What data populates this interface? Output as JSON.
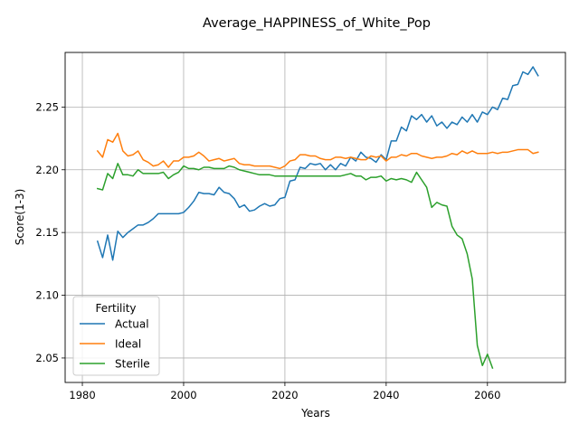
{
  "chart_data": {
    "type": "line",
    "title": "Average_HAPPINESS_of_White_Pop",
    "xlabel": "Years",
    "ylabel": "Score(1-3)",
    "xlim": [
      1976.6,
      2075.4
    ],
    "ylim": [
      2.0305,
      2.2935
    ],
    "xticks": [
      1980,
      2000,
      2020,
      2040,
      2060
    ],
    "yticks": [
      2.05,
      2.1,
      2.15,
      2.2,
      2.25
    ],
    "ytick_labels": [
      "2.05",
      "2.10",
      "2.15",
      "2.20",
      "2.25"
    ],
    "grid": true,
    "legend": {
      "title": "Fertility",
      "position": "lower-left"
    },
    "series": [
      {
        "name": "Actual",
        "color": "#1f77b4",
        "x": [
          1983,
          1984,
          1985,
          1986,
          1987,
          1988,
          1989,
          1990,
          1991,
          1992,
          1993,
          1994,
          1995,
          1996,
          1997,
          1998,
          1999,
          2000,
          2001,
          2002,
          2003,
          2004,
          2005,
          2006,
          2007,
          2008,
          2009,
          2010,
          2011,
          2012,
          2013,
          2014,
          2015,
          2016,
          2017,
          2018,
          2019,
          2020,
          2021,
          2022,
          2023,
          2024,
          2025,
          2026,
          2027,
          2028,
          2029,
          2030,
          2031,
          2032,
          2033,
          2034,
          2035,
          2036,
          2037,
          2038,
          2039,
          2040,
          2041,
          2042,
          2043,
          2044,
          2045,
          2046,
          2047,
          2048,
          2049,
          2050,
          2051,
          2052,
          2053,
          2054,
          2055,
          2056,
          2057,
          2058,
          2059,
          2060,
          2061,
          2062,
          2063,
          2064,
          2065,
          2066,
          2067,
          2068,
          2069,
          2070
        ],
        "values": [
          2.143,
          2.13,
          2.148,
          2.128,
          2.151,
          2.146,
          2.15,
          2.153,
          2.156,
          2.156,
          2.158,
          2.161,
          2.165,
          2.165,
          2.165,
          2.165,
          2.165,
          2.166,
          2.17,
          2.175,
          2.182,
          2.181,
          2.181,
          2.18,
          2.186,
          2.182,
          2.181,
          2.177,
          2.17,
          2.172,
          2.167,
          2.168,
          2.171,
          2.173,
          2.171,
          2.172,
          2.177,
          2.178,
          2.191,
          2.192,
          2.202,
          2.201,
          2.205,
          2.204,
          2.205,
          2.2,
          2.204,
          2.2,
          2.205,
          2.203,
          2.21,
          2.207,
          2.214,
          2.21,
          2.209,
          2.206,
          2.212,
          2.208,
          2.223,
          2.223,
          2.234,
          2.231,
          2.243,
          2.24,
          2.244,
          2.238,
          2.243,
          2.235,
          2.238,
          2.233,
          2.238,
          2.236,
          2.242,
          2.238,
          2.244,
          2.238,
          2.246,
          2.244,
          2.25,
          2.248,
          2.257,
          2.256,
          2.267,
          2.268,
          2.278,
          2.276,
          2.282,
          2.275
        ]
      },
      {
        "name": "Ideal",
        "color": "#ff7f0e",
        "x": [
          1983,
          1984,
          1985,
          1986,
          1987,
          1988,
          1989,
          1990,
          1991,
          1992,
          1993,
          1994,
          1995,
          1996,
          1997,
          1998,
          1999,
          2000,
          2001,
          2002,
          2003,
          2004,
          2005,
          2006,
          2007,
          2008,
          2009,
          2010,
          2011,
          2012,
          2013,
          2014,
          2015,
          2016,
          2017,
          2018,
          2019,
          2020,
          2021,
          2022,
          2023,
          2024,
          2025,
          2026,
          2027,
          2028,
          2029,
          2030,
          2031,
          2032,
          2033,
          2034,
          2035,
          2036,
          2037,
          2038,
          2039,
          2040,
          2041,
          2042,
          2043,
          2044,
          2045,
          2046,
          2047,
          2048,
          2049,
          2050,
          2051,
          2052,
          2053,
          2054,
          2055,
          2056,
          2057,
          2058,
          2059,
          2060,
          2061,
          2062,
          2063,
          2064,
          2065,
          2066,
          2067,
          2068,
          2069,
          2070
        ],
        "values": [
          2.215,
          2.21,
          2.224,
          2.222,
          2.229,
          2.215,
          2.211,
          2.212,
          2.215,
          2.208,
          2.206,
          2.203,
          2.204,
          2.207,
          2.202,
          2.207,
          2.207,
          2.21,
          2.21,
          2.211,
          2.214,
          2.211,
          2.207,
          2.208,
          2.209,
          2.207,
          2.208,
          2.209,
          2.205,
          2.204,
          2.204,
          2.203,
          2.203,
          2.203,
          2.203,
          2.202,
          2.201,
          2.203,
          2.207,
          2.208,
          2.212,
          2.212,
          2.211,
          2.211,
          2.209,
          2.208,
          2.208,
          2.21,
          2.21,
          2.209,
          2.21,
          2.209,
          2.208,
          2.208,
          2.211,
          2.21,
          2.211,
          2.207,
          2.21,
          2.21,
          2.212,
          2.211,
          2.213,
          2.213,
          2.211,
          2.21,
          2.209,
          2.21,
          2.21,
          2.211,
          2.213,
          2.212,
          2.215,
          2.213,
          2.215,
          2.213,
          2.213,
          2.213,
          2.214,
          2.213,
          2.214,
          2.214,
          2.215,
          2.216,
          2.216,
          2.216,
          2.213,
          2.214
        ]
      },
      {
        "name": "Sterile",
        "color": "#2ca02c",
        "x": [
          1983,
          1984,
          1985,
          1986,
          1987,
          1988,
          1989,
          1990,
          1991,
          1992,
          1993,
          1994,
          1995,
          1996,
          1997,
          1998,
          1999,
          2000,
          2001,
          2002,
          2003,
          2004,
          2005,
          2006,
          2007,
          2008,
          2009,
          2010,
          2011,
          2012,
          2013,
          2014,
          2015,
          2016,
          2017,
          2018,
          2019,
          2020,
          2021,
          2022,
          2023,
          2024,
          2025,
          2026,
          2027,
          2028,
          2029,
          2030,
          2031,
          2032,
          2033,
          2034,
          2035,
          2036,
          2037,
          2038,
          2039,
          2040,
          2041,
          2042,
          2043,
          2044,
          2045,
          2046,
          2047,
          2048,
          2049,
          2050,
          2051,
          2052,
          2053,
          2054,
          2055,
          2056,
          2057,
          2058,
          2059,
          2060,
          2061
        ],
        "values": [
          2.185,
          2.184,
          2.197,
          2.193,
          2.205,
          2.196,
          2.196,
          2.195,
          2.2,
          2.197,
          2.197,
          2.197,
          2.197,
          2.198,
          2.193,
          2.196,
          2.198,
          2.203,
          2.201,
          2.201,
          2.2,
          2.202,
          2.202,
          2.201,
          2.201,
          2.201,
          2.203,
          2.202,
          2.2,
          2.199,
          2.198,
          2.197,
          2.196,
          2.196,
          2.196,
          2.195,
          2.195,
          2.195,
          2.195,
          2.195,
          2.195,
          2.195,
          2.195,
          2.195,
          2.195,
          2.195,
          2.195,
          2.195,
          2.195,
          2.196,
          2.197,
          2.195,
          2.195,
          2.192,
          2.194,
          2.194,
          2.195,
          2.191,
          2.193,
          2.192,
          2.193,
          2.192,
          2.19,
          2.198,
          2.192,
          2.186,
          2.17,
          2.174,
          2.172,
          2.171,
          2.155,
          2.148,
          2.145,
          2.133,
          2.113,
          2.06,
          2.044,
          2.053,
          2.042
        ]
      }
    ]
  }
}
